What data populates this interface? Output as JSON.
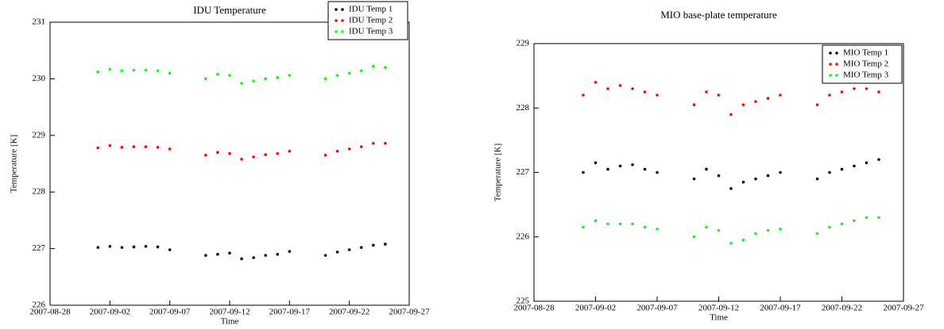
{
  "chart_data": [
    {
      "type": "scatter",
      "title": "IDU Temperature",
      "x_label": "Time",
      "y_label": "Temperature [K]",
      "x": [
        "2007-09-01",
        "2007-09-02",
        "2007-09-03",
        "2007-09-04",
        "2007-09-05",
        "2007-09-06",
        "2007-09-07",
        "2007-09-10",
        "2007-09-11",
        "2007-09-12",
        "2007-09-13",
        "2007-09-14",
        "2007-09-15",
        "2007-09-16",
        "2007-09-17",
        "2007-09-20",
        "2007-09-21",
        "2007-09-22",
        "2007-09-23",
        "2007-09-24",
        "2007-09-25"
      ],
      "series": [
        {
          "name": "IDU Temp 1",
          "color": "#000000",
          "values": [
            227.02,
            227.04,
            227.02,
            227.03,
            227.04,
            227.03,
            226.98,
            226.88,
            226.9,
            226.92,
            226.82,
            226.84,
            226.88,
            226.9,
            226.95,
            226.88,
            226.94,
            226.98,
            227.02,
            227.06,
            227.08
          ]
        },
        {
          "name": "IDU Temp 2",
          "color": "#ff0000",
          "values": [
            228.78,
            228.82,
            228.79,
            228.8,
            228.8,
            228.79,
            228.76,
            228.65,
            228.7,
            228.68,
            228.58,
            228.62,
            228.66,
            228.68,
            228.72,
            228.65,
            228.72,
            228.76,
            228.8,
            228.86,
            228.86
          ]
        },
        {
          "name": "IDU Temp 3",
          "color": "#00ff00",
          "values": [
            230.12,
            230.17,
            230.14,
            230.15,
            230.15,
            230.14,
            230.1,
            230.0,
            230.08,
            230.06,
            229.92,
            229.96,
            230.0,
            230.02,
            230.06,
            230.0,
            230.06,
            230.1,
            230.14,
            230.22,
            230.2
          ]
        }
      ],
      "xlim": [
        "2007-08-28",
        "2007-09-27"
      ],
      "xticks": [
        "2007-08-28",
        "2007-09-02",
        "2007-09-07",
        "2007-09-12",
        "2007-09-17",
        "2007-09-22",
        "2007-09-27"
      ],
      "ylim": [
        226,
        231
      ],
      "yticks": [
        226,
        227,
        228,
        229,
        230,
        231
      ],
      "legend": "upper right",
      "grid": false
    },
    {
      "type": "scatter",
      "title": "MIO base-plate temperature",
      "x_label": "Time",
      "y_label": "Temperature [K]",
      "x": [
        "2007-09-01",
        "2007-09-02",
        "2007-09-03",
        "2007-09-04",
        "2007-09-05",
        "2007-09-06",
        "2007-09-07",
        "2007-09-10",
        "2007-09-11",
        "2007-09-12",
        "2007-09-13",
        "2007-09-14",
        "2007-09-15",
        "2007-09-16",
        "2007-09-17",
        "2007-09-20",
        "2007-09-21",
        "2007-09-22",
        "2007-09-23",
        "2007-09-24",
        "2007-09-25"
      ],
      "series": [
        {
          "name": "MIO Temp 1",
          "color": "#000000",
          "values": [
            227.0,
            227.15,
            227.05,
            227.1,
            227.12,
            227.05,
            227.0,
            226.9,
            227.05,
            226.95,
            226.75,
            226.85,
            226.9,
            226.95,
            227.0,
            226.9,
            227.0,
            227.05,
            227.1,
            227.15,
            227.2
          ]
        },
        {
          "name": "MIO Temp 2",
          "color": "#ff0000",
          "values": [
            228.2,
            228.4,
            228.3,
            228.35,
            228.3,
            228.25,
            228.2,
            228.05,
            228.25,
            228.2,
            227.9,
            228.05,
            228.1,
            228.15,
            228.2,
            228.05,
            228.2,
            228.25,
            228.3,
            228.3,
            228.25
          ]
        },
        {
          "name": "MIO Temp 3",
          "color": "#00ff00",
          "values": [
            226.15,
            226.25,
            226.2,
            226.2,
            226.2,
            226.15,
            226.12,
            226.0,
            226.15,
            226.1,
            225.9,
            225.95,
            226.05,
            226.1,
            226.12,
            226.05,
            226.15,
            226.2,
            226.25,
            226.3,
            226.3
          ]
        }
      ],
      "xlim": [
        "2007-08-28",
        "2007-09-27"
      ],
      "xticks": [
        "2007-08-28",
        "2007-09-02",
        "2007-09-07",
        "2007-09-12",
        "2007-09-17",
        "2007-09-22",
        "2007-09-27"
      ],
      "ylim": [
        225,
        229
      ],
      "yticks": [
        225,
        226,
        227,
        228,
        229
      ],
      "legend": "upper right",
      "grid": false
    }
  ]
}
